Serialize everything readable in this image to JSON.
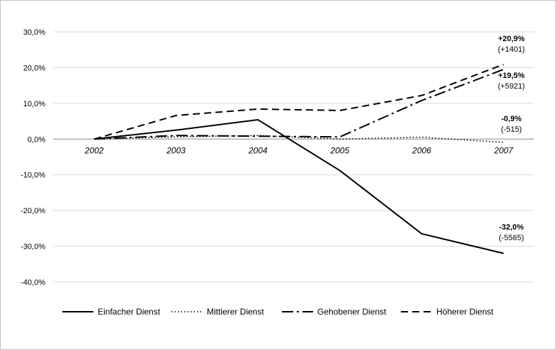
{
  "chart_data": {
    "type": "line",
    "categories": [
      "2002",
      "2003",
      "2004",
      "2005",
      "2006",
      "2007"
    ],
    "ylim": [
      -40,
      30
    ],
    "yticks": [
      30,
      20,
      10,
      0,
      -10,
      -20,
      -30,
      -40
    ],
    "ytick_labels": [
      "30,0%",
      "20,0%",
      "10,0%",
      "0,0%",
      "-10,0%",
      "-20,0%",
      "-30,0%",
      "-40,0%"
    ],
    "grid": "horizontal",
    "legend": "bottom",
    "series": [
      {
        "name": "Einfacher Dienst",
        "style": "solid",
        "values": [
          0,
          2.5,
          5.4,
          -8.8,
          -26.5,
          -32.0
        ],
        "annotation": {
          "pct": "-32,0%",
          "count": "(-5565)"
        }
      },
      {
        "name": "Mittlerer Dienst",
        "style": "dotted",
        "values": [
          0,
          0.6,
          1.0,
          0.0,
          0.5,
          -0.9
        ],
        "annotation": {
          "pct": "-0,9%",
          "count": "(-515)"
        }
      },
      {
        "name": "Gehobener Dienst",
        "style": "dashdot",
        "values": [
          0,
          1.0,
          0.8,
          0.6,
          10.8,
          19.5
        ],
        "annotation": {
          "pct": "+19,5%",
          "count": "(+5921)"
        }
      },
      {
        "name": "Höherer Dienst",
        "style": "dashed",
        "values": [
          0,
          6.6,
          8.4,
          8.0,
          12.2,
          20.9
        ],
        "annotation": {
          "pct": "+20,9%",
          "count": "(+1401)"
        }
      }
    ],
    "colors": {
      "line": "#000000",
      "grid": "#d9d9d9",
      "axis": "#8c8c8c"
    }
  }
}
